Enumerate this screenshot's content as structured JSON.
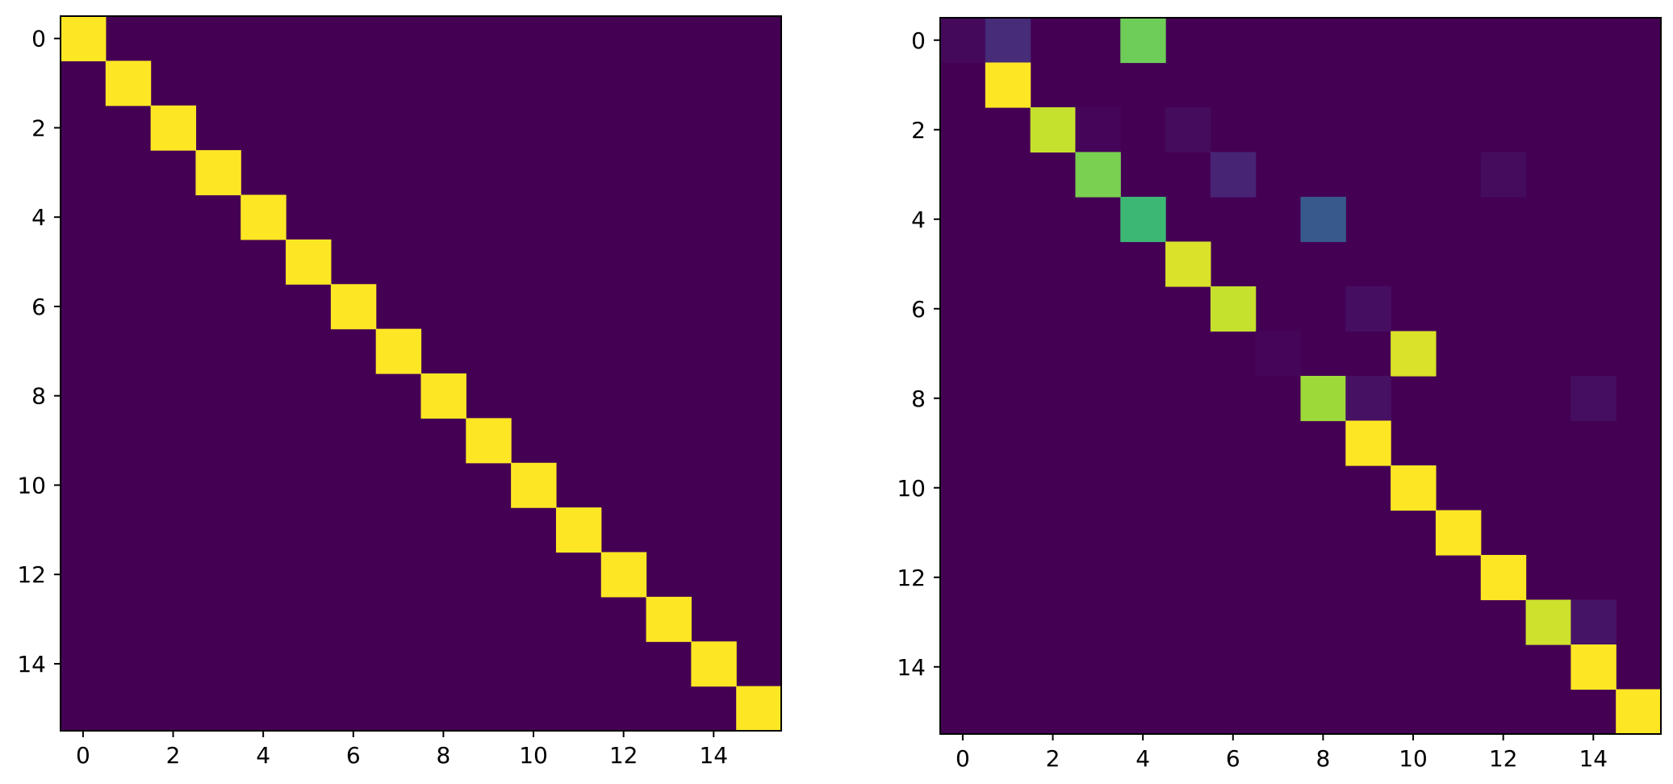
{
  "chart_data": [
    {
      "type": "heatmap",
      "title": "",
      "xlabel": "",
      "ylabel": "",
      "colormap": "viridis",
      "grid": false,
      "xlim": [
        -0.5,
        15.5
      ],
      "ylim": [
        15.5,
        -0.5
      ],
      "x_ticks": [
        0,
        2,
        4,
        6,
        8,
        10,
        12,
        14
      ],
      "y_ticks": [
        0,
        2,
        4,
        6,
        8,
        10,
        12,
        14
      ],
      "x_tick_labels": [
        "0",
        "2",
        "4",
        "6",
        "8",
        "10",
        "12",
        "14"
      ],
      "y_tick_labels": [
        "0",
        "2",
        "4",
        "6",
        "8",
        "10",
        "12",
        "14"
      ],
      "size": 16,
      "vmin": 0,
      "vmax": 1,
      "background_value": 0.0,
      "cells": [
        {
          "row": 0,
          "col": 0,
          "value": 1.0
        },
        {
          "row": 1,
          "col": 1,
          "value": 1.0
        },
        {
          "row": 2,
          "col": 2,
          "value": 1.0
        },
        {
          "row": 3,
          "col": 3,
          "value": 1.0
        },
        {
          "row": 4,
          "col": 4,
          "value": 1.0
        },
        {
          "row": 5,
          "col": 5,
          "value": 1.0
        },
        {
          "row": 6,
          "col": 6,
          "value": 1.0
        },
        {
          "row": 7,
          "col": 7,
          "value": 1.0
        },
        {
          "row": 8,
          "col": 8,
          "value": 1.0
        },
        {
          "row": 9,
          "col": 9,
          "value": 1.0
        },
        {
          "row": 10,
          "col": 10,
          "value": 1.0
        },
        {
          "row": 11,
          "col": 11,
          "value": 1.0
        },
        {
          "row": 12,
          "col": 12,
          "value": 1.0
        },
        {
          "row": 13,
          "col": 13,
          "value": 1.0
        },
        {
          "row": 14,
          "col": 14,
          "value": 1.0
        },
        {
          "row": 15,
          "col": 15,
          "value": 1.0
        }
      ]
    },
    {
      "type": "heatmap",
      "title": "",
      "xlabel": "",
      "ylabel": "",
      "colormap": "viridis",
      "grid": false,
      "xlim": [
        -0.5,
        15.5
      ],
      "ylim": [
        15.5,
        -0.5
      ],
      "x_ticks": [
        0,
        2,
        4,
        6,
        8,
        10,
        12,
        14
      ],
      "y_ticks": [
        0,
        2,
        4,
        6,
        8,
        10,
        12,
        14
      ],
      "x_tick_labels": [
        "0",
        "2",
        "4",
        "6",
        "8",
        "10",
        "12",
        "14"
      ],
      "y_tick_labels": [
        "0",
        "2",
        "4",
        "6",
        "8",
        "10",
        "12",
        "14"
      ],
      "size": 16,
      "vmin": 0,
      "vmax": 1,
      "background_value": 0.0,
      "cells": [
        {
          "row": 0,
          "col": 0,
          "value": 0.03
        },
        {
          "row": 0,
          "col": 1,
          "value": 0.15
        },
        {
          "row": 0,
          "col": 4,
          "value": 0.78
        },
        {
          "row": 1,
          "col": 1,
          "value": 1.0
        },
        {
          "row": 2,
          "col": 2,
          "value": 0.92
        },
        {
          "row": 2,
          "col": 3,
          "value": 0.02
        },
        {
          "row": 2,
          "col": 5,
          "value": 0.04
        },
        {
          "row": 3,
          "col": 3,
          "value": 0.8
        },
        {
          "row": 3,
          "col": 6,
          "value": 0.13
        },
        {
          "row": 3,
          "col": 12,
          "value": 0.04
        },
        {
          "row": 4,
          "col": 4,
          "value": 0.68
        },
        {
          "row": 4,
          "col": 8,
          "value": 0.28
        },
        {
          "row": 5,
          "col": 5,
          "value": 0.95
        },
        {
          "row": 6,
          "col": 6,
          "value": 0.92
        },
        {
          "row": 6,
          "col": 9,
          "value": 0.05
        },
        {
          "row": 7,
          "col": 7,
          "value": 0.02
        },
        {
          "row": 7,
          "col": 10,
          "value": 0.95
        },
        {
          "row": 8,
          "col": 8,
          "value": 0.86
        },
        {
          "row": 8,
          "col": 9,
          "value": 0.06
        },
        {
          "row": 8,
          "col": 14,
          "value": 0.05
        },
        {
          "row": 9,
          "col": 9,
          "value": 1.0
        },
        {
          "row": 10,
          "col": 10,
          "value": 1.0
        },
        {
          "row": 11,
          "col": 11,
          "value": 1.0
        },
        {
          "row": 12,
          "col": 12,
          "value": 1.0
        },
        {
          "row": 13,
          "col": 13,
          "value": 0.93
        },
        {
          "row": 13,
          "col": 14,
          "value": 0.07
        },
        {
          "row": 14,
          "col": 14,
          "value": 1.0
        },
        {
          "row": 15,
          "col": 15,
          "value": 1.0
        }
      ]
    }
  ]
}
